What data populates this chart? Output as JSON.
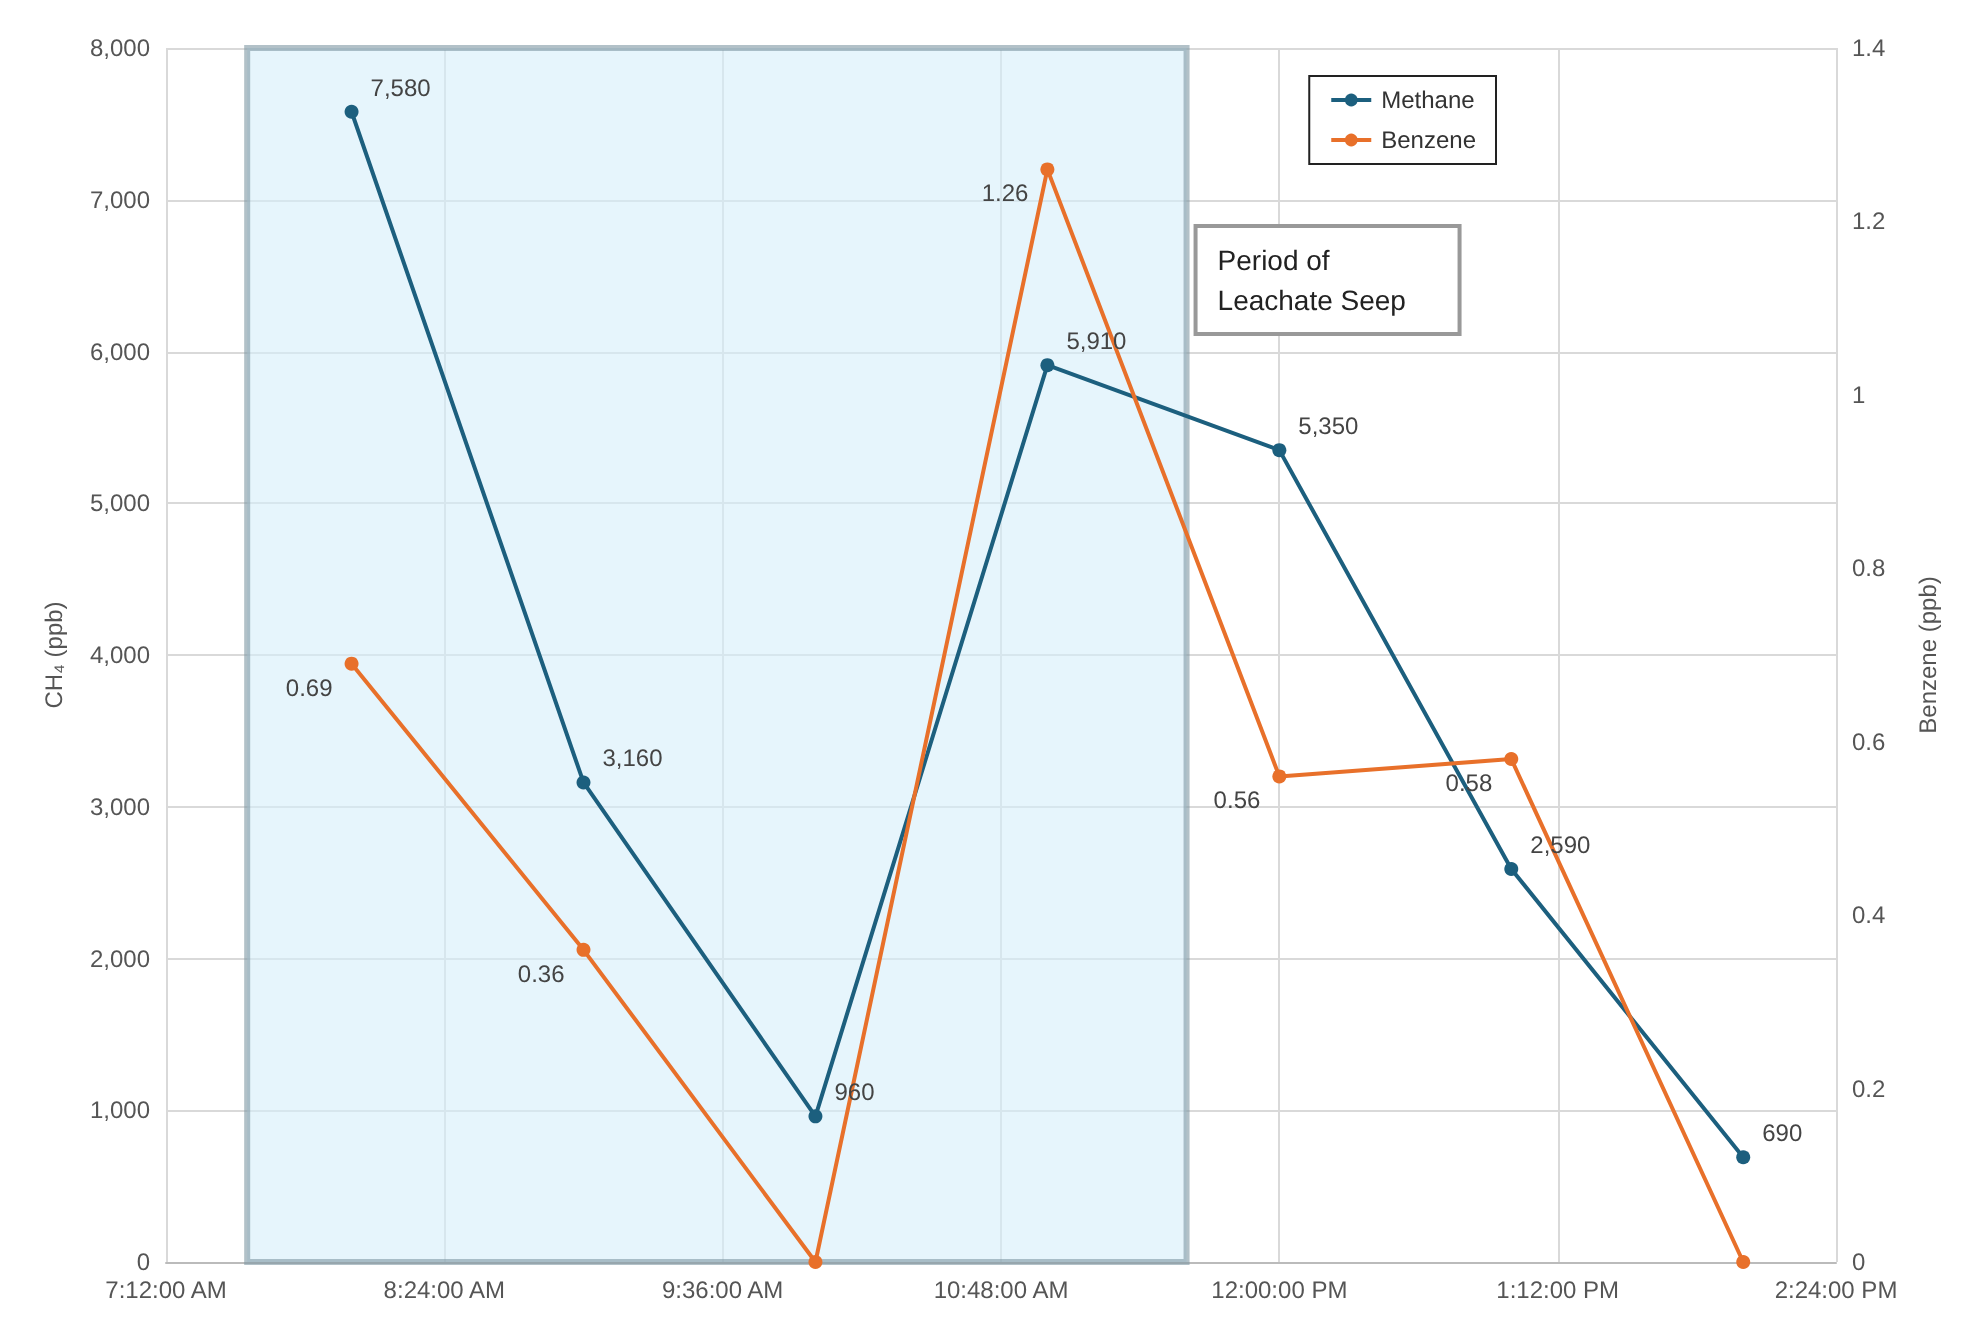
{
  "chart_data": {
    "type": "line",
    "x": [
      8,
      9,
      10,
      11,
      12,
      13,
      14
    ],
    "series": [
      {
        "name": "Methane",
        "color": "#1c5f7e",
        "values": [
          7580,
          3160,
          960,
          5910,
          5350,
          2590,
          690
        ],
        "value_labels": [
          "7,580",
          "3,160",
          "960",
          "5,910",
          "5,350",
          "2,590",
          "690"
        ]
      },
      {
        "name": "Benzene",
        "color": "#e8702a",
        "axis": "y2",
        "values": [
          0.69,
          0.36,
          0,
          1.26,
          0.56,
          0.58,
          0
        ],
        "value_labels": [
          "0.69",
          "0.36",
          null,
          "1.26",
          "0.56",
          "0.58",
          null
        ]
      }
    ],
    "xlim": [
      7.2,
      14.4
    ],
    "xticks": [
      {
        "value": 7.2,
        "label": "7:12:00 AM"
      },
      {
        "value": 8.4,
        "label": "8:24:00 AM"
      },
      {
        "value": 9.6,
        "label": "9:36:00 AM"
      },
      {
        "value": 10.8,
        "label": "10:48:00 AM"
      },
      {
        "value": 12,
        "label": "12:00:00 PM"
      },
      {
        "value": 13.2,
        "label": "1:12:00 PM"
      },
      {
        "value": 14.4,
        "label": "2:24:00 PM"
      }
    ],
    "ylim": [
      0,
      8000
    ],
    "yticks": [
      0,
      {
        "value": 1000,
        "label": "1,000"
      },
      {
        "value": 2000,
        "label": "2,000"
      },
      {
        "value": 3000,
        "label": "3,000"
      },
      {
        "value": 4000,
        "label": "4,000"
      },
      {
        "value": 5000,
        "label": "5,000"
      },
      {
        "value": 6000,
        "label": "6,000"
      },
      {
        "value": 7000,
        "label": "7,000"
      },
      {
        "value": 8000,
        "label": "8,000"
      }
    ],
    "y2lim": [
      0,
      1.4
    ],
    "y2ticks": [
      0,
      0.2,
      0.4,
      0.6,
      0.8,
      1,
      1.2,
      1.4
    ],
    "ylabel": "CH₄ (ppb)",
    "y2label": "Benzene (ppb)",
    "bands": [
      {
        "axis": "x",
        "from": 7.55,
        "to": 11.6,
        "label": "Period of Leachate Seep",
        "color": "#d6eefa"
      }
    ],
    "grid": true,
    "legend": "top right",
    "marker": "circle",
    "line_style": "solid"
  }
}
